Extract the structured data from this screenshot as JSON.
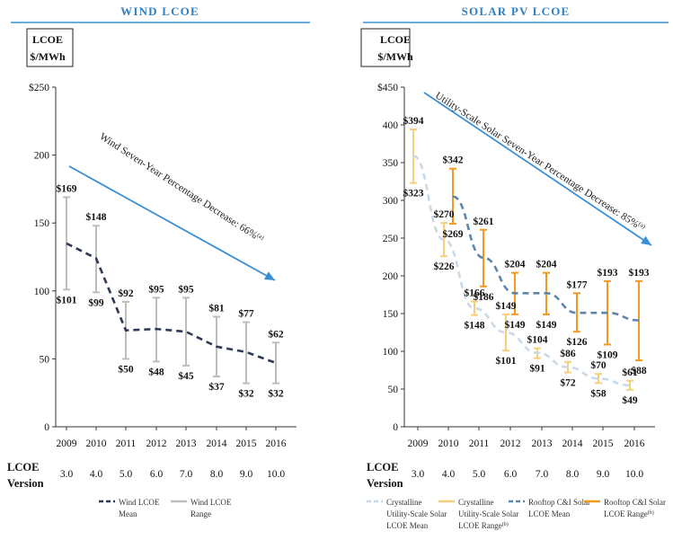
{
  "colors": {
    "header_line": "#3a93d4",
    "header_text": "#2f7fc1",
    "arrow": "#3a8fd4",
    "wind_mean": "#2f3a56",
    "wind_range": "#bdbdbd",
    "solar_util_mean": "#c9d9e8",
    "solar_util_range": "#f6cf7d",
    "solar_roof_mean": "#5f86a8",
    "solar_roof_range": "#f39a1e",
    "axis": "#333333",
    "text": "#111111"
  },
  "version_label_line1": "LCOE",
  "version_label_line2": "Version",
  "chart_data": [
    {
      "type": "line",
      "title": "WIND LCOE",
      "ylabel_line1": "LCOE",
      "ylabel_line2": "$/MWh",
      "categories": [
        "2009",
        "2010",
        "2011",
        "2012",
        "2013",
        "2014",
        "2015",
        "2016"
      ],
      "versions": [
        "3.0",
        "4.0",
        "5.0",
        "6.0",
        "7.0",
        "8.0",
        "9.0",
        "10.0"
      ],
      "ylim": [
        0,
        250
      ],
      "yticks": [
        0,
        50,
        100,
        150,
        200,
        250
      ],
      "ytick_labels": [
        "0",
        "50",
        "100",
        "150",
        "200",
        "$250"
      ],
      "series": [
        {
          "name": "Wind LCOE Mean",
          "kind": "mean-line",
          "values": [
            135,
            124,
            71,
            72,
            70,
            59,
            55,
            47
          ]
        },
        {
          "name": "Wind LCOE Range",
          "kind": "range",
          "low": [
            101,
            99,
            50,
            48,
            45,
            37,
            32,
            32
          ],
          "high": [
            169,
            148,
            92,
            95,
            95,
            81,
            77,
            62
          ],
          "low_labels": [
            "$101",
            "$99",
            "$50",
            "$48",
            "$45",
            "$37",
            "$32",
            "$32"
          ],
          "high_labels": [
            "$169",
            "$148",
            "$92",
            "$95",
            "$95",
            "$81",
            "$77",
            "$62"
          ]
        }
      ],
      "annotation": "Wind Seven-Year Percentage Decrease: 66%",
      "annotation_sup": "(a)",
      "legend": [
        {
          "line1": "Wind LCOE",
          "line2": "Mean",
          "line3": "",
          "sup": ""
        },
        {
          "line1": "Wind LCOE",
          "line2": "Range",
          "line3": "",
          "sup": ""
        }
      ]
    },
    {
      "type": "line",
      "title": "SOLAR PV LCOE",
      "ylabel_line1": "LCOE",
      "ylabel_line2": "$/MWh",
      "categories": [
        "2009",
        "2010",
        "2011",
        "2012",
        "2013",
        "2014",
        "2015",
        "2016"
      ],
      "versions": [
        "3.0",
        "4.0",
        "5.0",
        "6.0",
        "7.0",
        "8.0",
        "9.0",
        "10.0"
      ],
      "ylim": [
        0,
        450
      ],
      "yticks": [
        0,
        50,
        100,
        150,
        200,
        250,
        300,
        350,
        400,
        450
      ],
      "ytick_labels": [
        "0",
        "50",
        "100",
        "150",
        "200",
        "250",
        "300",
        "350",
        "400",
        "$450"
      ],
      "series": [
        {
          "name": "Crystalline Utility-Scale Solar LCOE Mean",
          "kind": "mean-line",
          "values": [
            359,
            248,
            157,
            125,
            98,
            79,
            64,
            55
          ]
        },
        {
          "name": "Crystalline Utility-Scale Solar LCOE Range",
          "kind": "range",
          "low": [
            323,
            226,
            148,
            101,
            91,
            72,
            58,
            49
          ],
          "high": [
            394,
            270,
            166,
            149,
            104,
            86,
            70,
            61
          ],
          "low_labels": [
            "$323",
            "$226",
            "$148",
            "$101",
            "$91",
            "$72",
            "$58",
            "$49"
          ],
          "high_labels": [
            "$394",
            "$270",
            "$166",
            "$149",
            "$104",
            "$86",
            "$70",
            "$61"
          ]
        },
        {
          "name": "Rooftop C&I Solar LCOE Mean",
          "kind": "mean-line",
          "values": [
            null,
            305,
            224,
            177,
            177,
            151,
            151,
            141
          ]
        },
        {
          "name": "Rooftop C&I Solar LCOE Range",
          "kind": "range",
          "low": [
            null,
            269,
            186,
            149,
            149,
            126,
            109,
            88
          ],
          "high": [
            null,
            342,
            261,
            204,
            204,
            177,
            193,
            193
          ],
          "low_labels": [
            "",
            "$269",
            "$186",
            "$149",
            "$149",
            "$126",
            "$109",
            "$88"
          ],
          "high_labels": [
            "",
            "$342",
            "$261",
            "$204",
            "$204",
            "$177",
            "$193",
            "$193"
          ]
        }
      ],
      "annotation": "Utility-Scale Solar Seven-Year Percentage Decrease: 85%",
      "annotation_sup": "(a)",
      "legend": [
        {
          "line1": "Crystalline",
          "line2": "Utility-Scale Solar",
          "line3": "LCOE Mean",
          "sup": ""
        },
        {
          "line1": "Crystalline",
          "line2": "Utility-Scale Solar",
          "line3": "LCOE Range",
          "sup": "(b)"
        },
        {
          "line1": "Rooftop C&I Solar",
          "line2": "LCOE Mean",
          "line3": "",
          "sup": ""
        },
        {
          "line1": "Rooftop C&I Solar",
          "line2": "LCOE Range",
          "line3": "",
          "sup": "(b)"
        }
      ]
    }
  ]
}
